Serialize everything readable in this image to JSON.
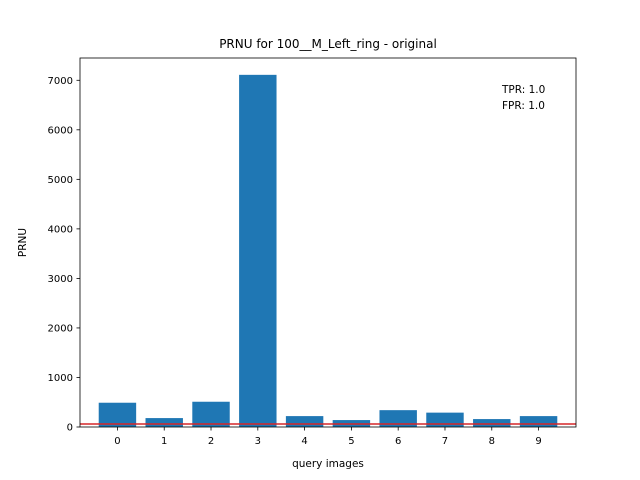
{
  "chart_data": {
    "type": "bar",
    "title": "PRNU for 100__M_Left_ring - original",
    "xlabel": "query images",
    "ylabel": "PRNU",
    "categories": [
      "0",
      "1",
      "2",
      "3",
      "4",
      "5",
      "6",
      "7",
      "8",
      "9"
    ],
    "values": [
      490,
      180,
      510,
      7110,
      220,
      140,
      340,
      290,
      160,
      220
    ],
    "ylim": [
      0,
      7450
    ],
    "yticks": [
      0,
      1000,
      2000,
      3000,
      4000,
      5000,
      6000,
      7000
    ],
    "yticklabels": [
      "0",
      "1000",
      "2000",
      "3000",
      "4000",
      "5000",
      "6000",
      "7000"
    ],
    "threshold": 60,
    "grid": false,
    "bar_color": "#1f77b4",
    "threshold_color": "#d62728",
    "annotations": [
      "TPR: 1.0",
      "FPR: 1.0"
    ]
  }
}
